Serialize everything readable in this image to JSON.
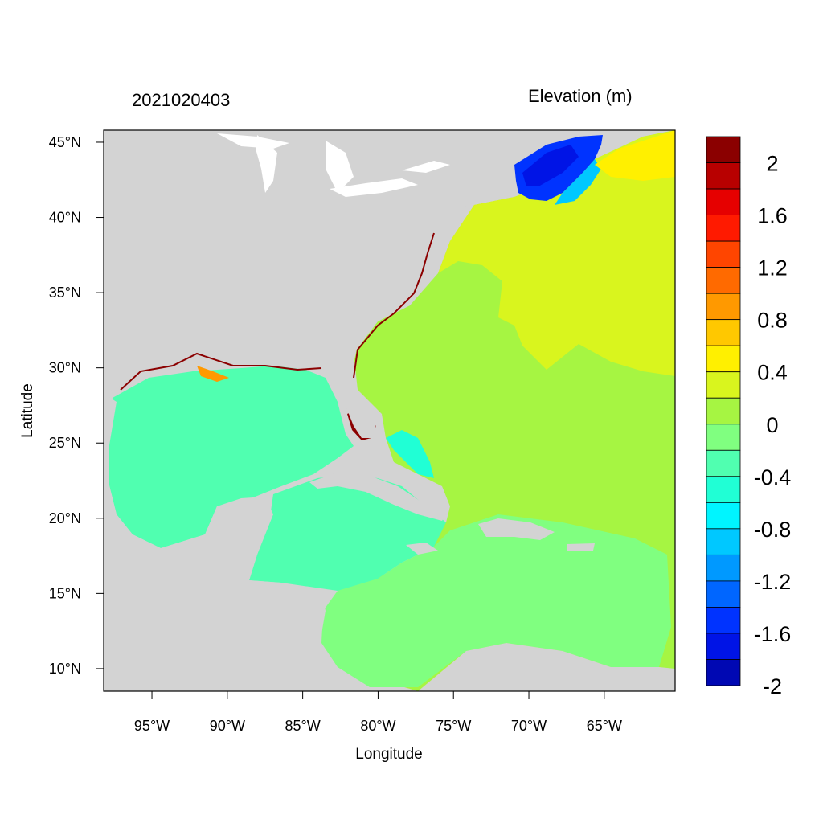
{
  "map": {
    "date": "2021020403",
    "variable": "Elevation (m)",
    "xlabel": "Longitude",
    "ylabel": "Latitude",
    "lon_range": [
      -98.2,
      -60.3
    ],
    "lat_range": [
      8.5,
      45.8
    ],
    "lon_ticks": [
      {
        "value": -95,
        "label": "95°W"
      },
      {
        "value": -90,
        "label": "90°W"
      },
      {
        "value": -85,
        "label": "85°W"
      },
      {
        "value": -80,
        "label": "80°W"
      },
      {
        "value": -75,
        "label": "75°W"
      },
      {
        "value": -70,
        "label": "70°W"
      },
      {
        "value": -65,
        "label": "65°W"
      }
    ],
    "lat_ticks": [
      {
        "value": 45,
        "label": "45°N"
      },
      {
        "value": 40,
        "label": "40°N"
      },
      {
        "value": 35,
        "label": "35°N"
      },
      {
        "value": 30,
        "label": "30°N"
      },
      {
        "value": 25,
        "label": "25°N"
      },
      {
        "value": 20,
        "label": "20°N"
      },
      {
        "value": 15,
        "label": "15°N"
      },
      {
        "value": 10,
        "label": "10°N"
      }
    ],
    "land_color": "#d3d3d3"
  },
  "colorbar": {
    "colors": [
      "#8b0000",
      "#b80000",
      "#e60000",
      "#ff1a00",
      "#ff4500",
      "#ff6a00",
      "#ff9900",
      "#ffc800",
      "#fff000",
      "#d9f51e",
      "#a6f542",
      "#80ff80",
      "#50ffb0",
      "#20ffd5",
      "#00f5ff",
      "#00c8ff",
      "#0099ff",
      "#0066ff",
      "#0033ff",
      "#0014e6",
      "#0008b3"
    ],
    "labels": [
      "2",
      "1.6",
      "1.2",
      "0.8",
      "0.4",
      "0",
      "-0.4",
      "-0.8",
      "-1.2",
      "-1.6",
      "-2"
    ]
  }
}
